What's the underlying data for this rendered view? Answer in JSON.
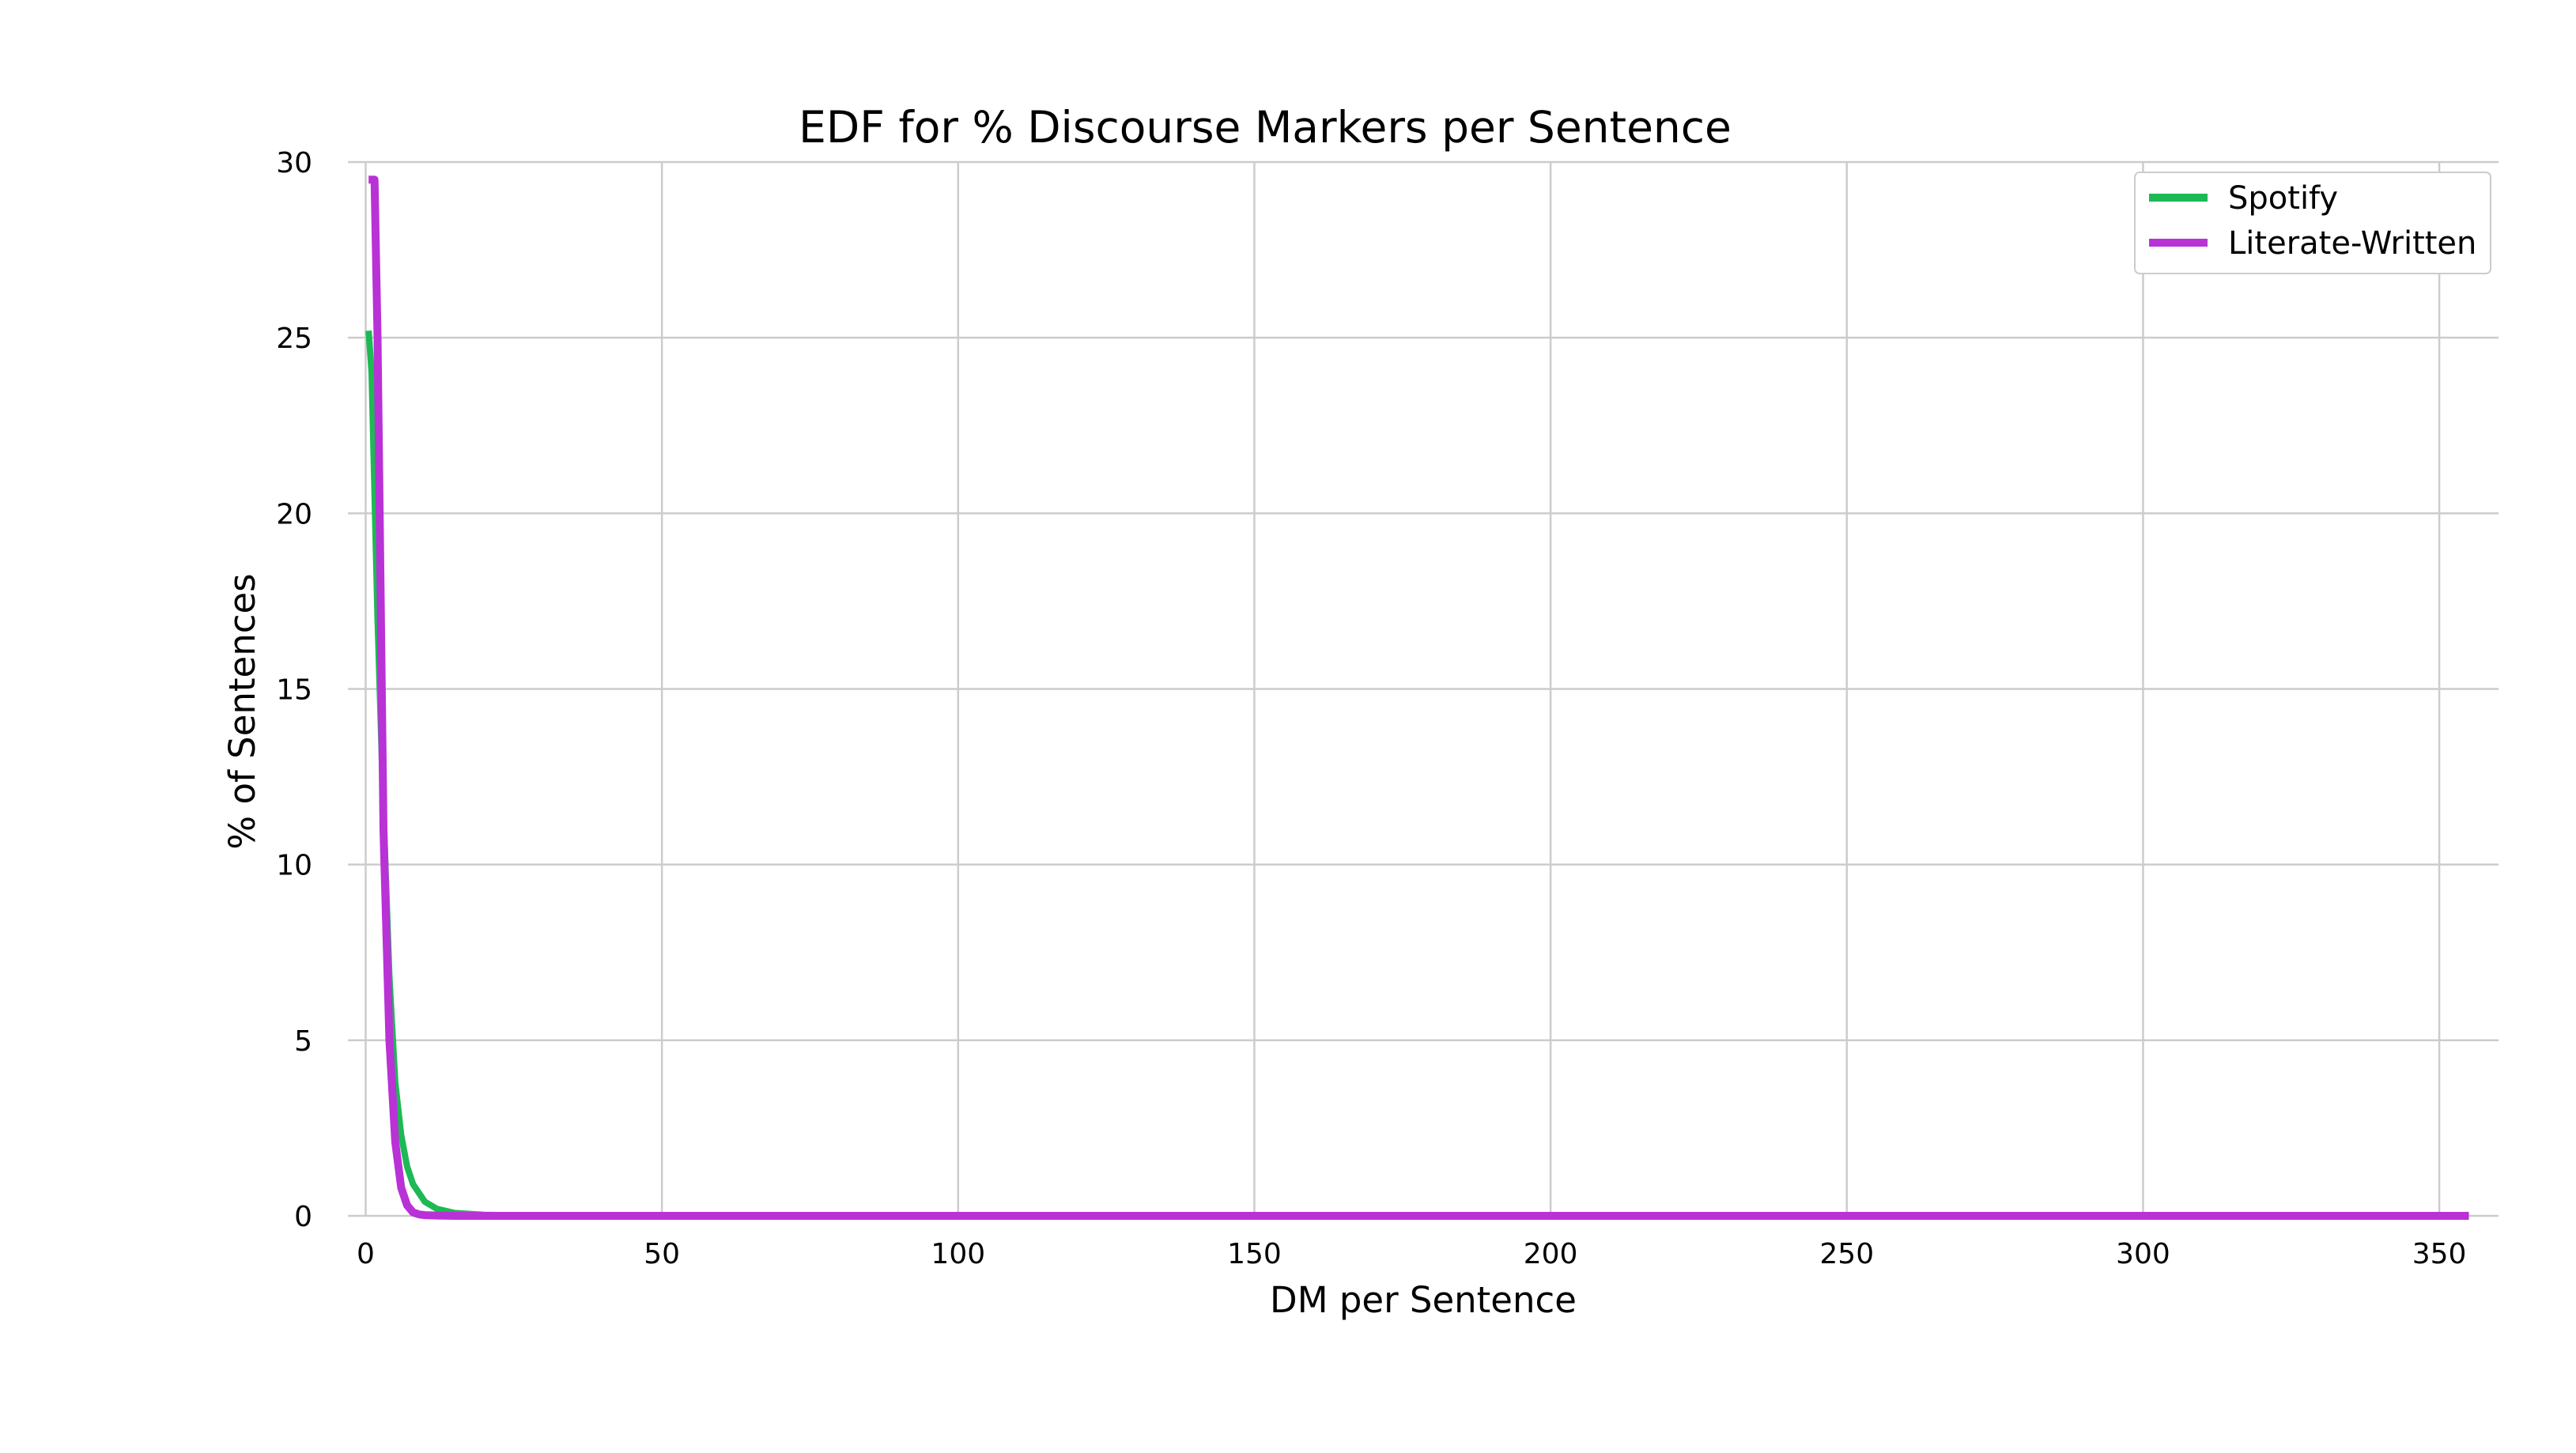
{
  "chart_data": {
    "type": "line",
    "title": "EDF for % Discourse Markers per Sentence",
    "xlabel": "DM per Sentence",
    "ylabel": "% of Sentences",
    "xlim": [
      -3,
      360
    ],
    "ylim": [
      0,
      30
    ],
    "xticks": [
      0,
      50,
      100,
      150,
      200,
      250,
      300,
      350
    ],
    "yticks": [
      0,
      5,
      10,
      15,
      20,
      25,
      30
    ],
    "grid": true,
    "legend_position": "top-right",
    "series": [
      {
        "name": "Spotify",
        "color": "#1db954",
        "x": [
          0.5,
          1,
          2,
          3,
          4,
          5,
          6,
          7,
          8,
          10,
          12,
          15,
          20,
          30,
          50,
          100,
          200,
          300,
          355
        ],
        "y": [
          25.2,
          24.0,
          17.0,
          11.5,
          6.8,
          3.8,
          2.3,
          1.4,
          0.9,
          0.4,
          0.2,
          0.08,
          0.03,
          0.0,
          0.0,
          0.0,
          0.0,
          0.0,
          0.0
        ]
      },
      {
        "name": "Literate-Written",
        "color": "#b832d6",
        "x": [
          0.5,
          1.5,
          2,
          3,
          4,
          5,
          6,
          7,
          8,
          9,
          10,
          12,
          15,
          20,
          50,
          100,
          200,
          300,
          355
        ],
        "y": [
          29.5,
          29.5,
          25.0,
          11.0,
          5.0,
          2.1,
          0.8,
          0.3,
          0.1,
          0.04,
          0.02,
          0.01,
          0.0,
          0.0,
          0.0,
          0.0,
          0.0,
          0.0,
          0.0
        ]
      }
    ]
  }
}
